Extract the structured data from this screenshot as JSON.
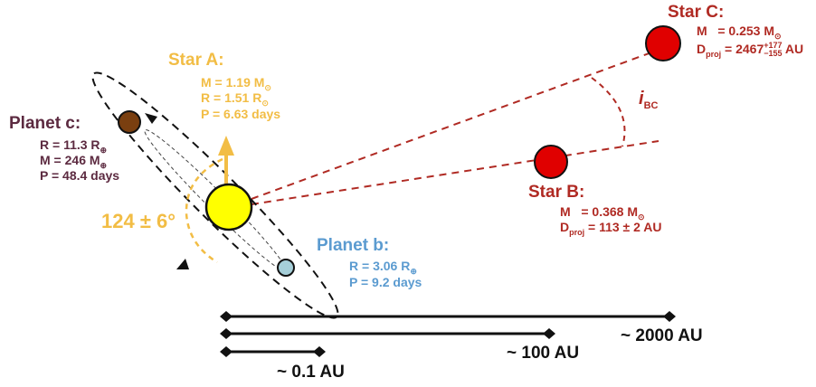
{
  "colors": {
    "star_a": "#f2bd45",
    "star_a_fill": "#ffff00",
    "star_bc": "#e00000",
    "star_bc_text": "#b02a23",
    "planet_c": "#5c2a40",
    "planet_c_fill": "#7a3f10",
    "planet_b": "#5b9bd0",
    "planet_b_fill": "#a6cfd9",
    "line": "#b02a23",
    "axis": "#111111"
  },
  "star_a": {
    "title": "Star A:",
    "mass": "M = 1.19 M",
    "radius": "R = 1.51 R",
    "period": "P = 6.63 days",
    "sun_symbol": "⊙"
  },
  "planet_c": {
    "title": "Planet c:",
    "radius": "R = 11.3 R",
    "mass": "M = 246 M",
    "period": "P = 48.4 days",
    "earth_symbol": "⊕"
  },
  "planet_b": {
    "title": "Planet b:",
    "radius": "R = 3.06 R",
    "period": "P = 9.2 days",
    "earth_symbol": "⊕"
  },
  "star_b": {
    "title": "Star B:",
    "mass_prefix": "M",
    "mass_value": "= 0.368 M",
    "dist_prefix": "D",
    "dist_sub": "proj",
    "dist_value": "= 113 ± 2 AU",
    "sun_symbol": "⊙"
  },
  "star_c": {
    "title": "Star C:",
    "mass_prefix": "M",
    "mass_value": "= 0.253 M",
    "dist_prefix": "D",
    "dist_sub": "proj",
    "dist_value": "= 2467",
    "dist_sup": "+177",
    "dist_lower": "−155",
    "dist_unit": "AU",
    "sun_symbol": "⊙"
  },
  "angle_label": "124 ± 6°",
  "angle_bc": {
    "symbol": "i",
    "sub": "BC"
  },
  "scales": [
    {
      "label": "~ 2000 AU"
    },
    {
      "label": "~ 100 AU"
    },
    {
      "label": "~ 0.1 AU"
    }
  ]
}
